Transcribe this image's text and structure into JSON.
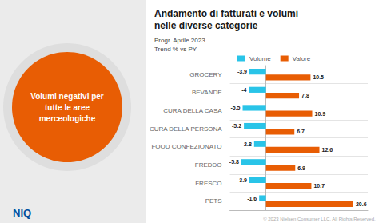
{
  "chart_data": {
    "type": "bar",
    "orientation": "horizontal",
    "title": "Andamento di fatturati e volumi\nnelle diverse categorie",
    "subtitle": "Progr. Aprile 2023\nTrend % vs PY",
    "annotations": [
      "Volumi negativi per\ntutte le aree\nmerceologiche",
      "NIQ",
      "© 2023 Nielsen Consumer LLC. All Rights Reserved."
    ],
    "categories": [
      "GROCERY",
      "BEVANDE",
      "CURA DELLA CASA",
      "CURA DELLA PERSONA",
      "FOOD CONFEZIONATO",
      "FREDDO",
      "FRESCO",
      "PETS"
    ],
    "series": [
      {
        "name": "Volume",
        "color": "#29C4E8",
        "values": [
          -3.9,
          -4.0,
          -5.5,
          -5.2,
          -2.8,
          -5.8,
          -3.9,
          -1.6
        ]
      },
      {
        "name": "Valore",
        "color": "#E85D04",
        "values": [
          10.5,
          7.8,
          10.9,
          6.7,
          12.6,
          6.9,
          10.7,
          20.6
        ]
      }
    ],
    "xlim": [
      -8.5,
      24
    ],
    "tick_labels": "y",
    "grid": true,
    "legend": "top",
    "data_labels": true
  }
}
